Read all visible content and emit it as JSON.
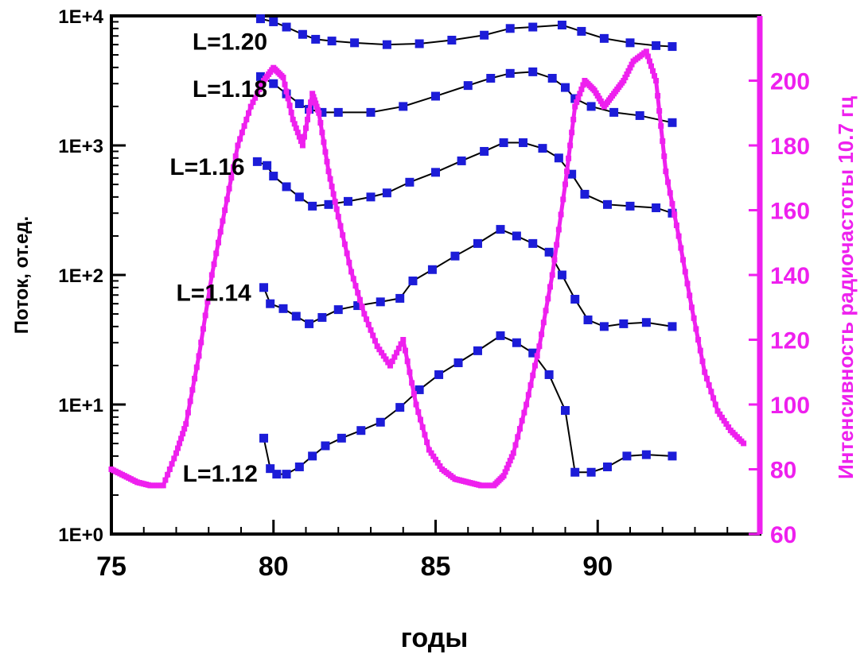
{
  "chart_data": {
    "type": "line",
    "title": "",
    "xlabel": "годы",
    "ylabel": "Поток, от.ед.",
    "ylabel_right": "Интенсивность радиочастоты 10.7 гц",
    "xlim": [
      75,
      95
    ],
    "ylim": [
      1,
      10000
    ],
    "y_scale": "log",
    "ylim_right": [
      60,
      220
    ],
    "x_ticks": [
      "75",
      "80",
      "85",
      "90"
    ],
    "x_tick_values": [
      75,
      80,
      85,
      90
    ],
    "y_ticks": [
      "1E+0",
      "1E+1",
      "1E+2",
      "1E+3",
      "1E+4"
    ],
    "y_tick_values": [
      1,
      10,
      100,
      1000,
      10000
    ],
    "y_right_ticks": [
      "60",
      "80",
      "100",
      "120",
      "140",
      "160",
      "180",
      "200"
    ],
    "y_right_tick_values": [
      60,
      80,
      100,
      120,
      140,
      160,
      180,
      200
    ],
    "grid": false,
    "colors": {
      "flux": "#1c1cd8",
      "radio": "#ee20ee",
      "axis": "#000000",
      "right_axis": "#ee20ee"
    },
    "series": [
      {
        "name": "L=1.20",
        "label_x": 77.5,
        "label_y": 6500,
        "x": [
          79.6,
          80.0,
          80.4,
          80.9,
          81.3,
          81.8,
          82.5,
          83.5,
          84.5,
          85.5,
          86.5,
          87.3,
          88.0,
          88.9,
          89.5,
          90.2,
          91.0,
          91.8,
          92.3
        ],
        "y": [
          9500,
          9000,
          8200,
          7200,
          6600,
          6400,
          6200,
          6000,
          6100,
          6500,
          7100,
          8000,
          8200,
          8500,
          7600,
          6700,
          6200,
          5900,
          5800
        ]
      },
      {
        "name": "L=1.18",
        "label_x": 77.5,
        "label_y": 2800,
        "x": [
          79.6,
          80.0,
          80.4,
          80.8,
          81.1,
          81.5,
          82.0,
          83.0,
          84.0,
          85.0,
          86.0,
          86.7,
          87.3,
          88.0,
          88.6,
          89.0,
          89.3,
          89.8,
          90.5,
          91.3,
          92.3
        ],
        "y": [
          3400,
          3000,
          2500,
          2100,
          1900,
          1800,
          1800,
          1800,
          2000,
          2400,
          2900,
          3300,
          3600,
          3700,
          3300,
          2800,
          2300,
          2000,
          1800,
          1700,
          1500
        ]
      },
      {
        "name": "L=1.16",
        "label_x": 76.8,
        "label_y": 700,
        "x": [
          79.5,
          79.8,
          80.0,
          80.4,
          80.8,
          81.2,
          81.7,
          82.3,
          83.0,
          83.5,
          84.2,
          85.0,
          85.8,
          86.5,
          87.1,
          87.7,
          88.3,
          88.8,
          89.2,
          89.6,
          90.3,
          91.0,
          91.8,
          92.3
        ],
        "y": [
          750,
          700,
          580,
          480,
          400,
          340,
          350,
          370,
          400,
          430,
          520,
          620,
          760,
          900,
          1050,
          1050,
          950,
          800,
          600,
          420,
          350,
          340,
          330,
          300
        ]
      },
      {
        "name": "L=1.14",
        "label_x": 77.0,
        "label_y": 75,
        "x": [
          79.7,
          79.9,
          80.3,
          80.7,
          81.1,
          81.5,
          82.0,
          82.6,
          83.3,
          83.9,
          84.3,
          84.9,
          85.6,
          86.3,
          87.0,
          87.5,
          88.0,
          88.5,
          88.9,
          89.3,
          89.7,
          90.2,
          90.8,
          91.5,
          92.3
        ],
        "y": [
          80,
          60,
          55,
          48,
          42,
          47,
          54,
          58,
          62,
          66,
          90,
          110,
          140,
          175,
          225,
          200,
          175,
          150,
          100,
          65,
          45,
          40,
          42,
          43,
          40
        ]
      },
      {
        "name": "L=1.12",
        "label_x": 77.2,
        "label_y": 3.0,
        "x": [
          79.7,
          79.9,
          80.1,
          80.4,
          80.8,
          81.2,
          81.6,
          82.1,
          82.7,
          83.3,
          83.9,
          84.5,
          85.1,
          85.7,
          86.3,
          87.0,
          87.5,
          88.0,
          88.5,
          89.0,
          89.3,
          89.8,
          90.3,
          90.9,
          91.5,
          92.3
        ],
        "y": [
          5.5,
          3.2,
          2.9,
          2.9,
          3.3,
          4.0,
          4.8,
          5.5,
          6.3,
          7.3,
          9.5,
          13.0,
          17.0,
          21.0,
          26.0,
          34.0,
          30.0,
          25.0,
          17.0,
          9.0,
          3.0,
          3.0,
          3.3,
          4.0,
          4.1,
          4.0
        ]
      },
      {
        "name": "",
        "axis": "right",
        "x": [
          75.0,
          75.4,
          75.8,
          76.2,
          76.6,
          77.0,
          77.3,
          77.7,
          78.1,
          78.5,
          78.9,
          79.3,
          79.7,
          80.0,
          80.3,
          80.6,
          80.9,
          81.2,
          81.4,
          81.7,
          82.0,
          82.4,
          82.8,
          83.2,
          83.6,
          84.0,
          84.4,
          84.8,
          85.2,
          85.6,
          86.0,
          86.4,
          86.8,
          87.1,
          87.4,
          87.8,
          88.2,
          88.6,
          89.0,
          89.3,
          89.6,
          89.9,
          90.2,
          90.5,
          90.8,
          91.1,
          91.5,
          91.8,
          92.1,
          92.5,
          92.9,
          93.3,
          93.7,
          94.1,
          94.5
        ],
        "y": [
          80,
          78,
          76,
          75,
          75,
          85,
          94,
          115,
          140,
          160,
          180,
          192,
          200,
          204,
          201,
          188,
          180,
          196,
          190,
          172,
          158,
          141,
          128,
          118,
          112,
          120,
          100,
          86,
          80,
          77,
          76,
          75,
          75,
          78,
          85,
          100,
          118,
          140,
          168,
          192,
          200,
          197,
          192,
          196,
          200,
          206,
          209,
          200,
          172,
          152,
          130,
          110,
          98,
          92,
          88
        ]
      }
    ]
  }
}
